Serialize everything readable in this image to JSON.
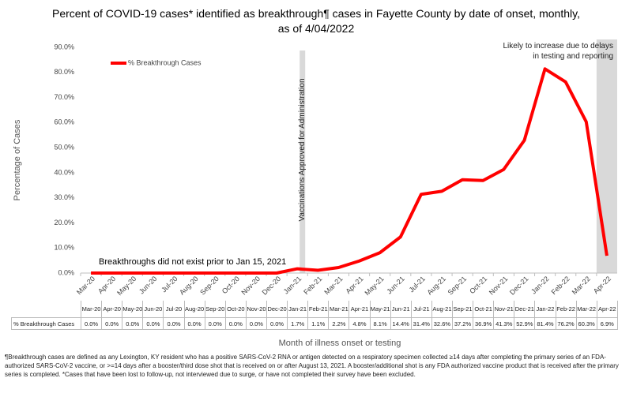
{
  "chart_data": {
    "type": "line",
    "title": "Percent of COVID-19 cases* identified as breakthrough¶ cases in Fayette County by date of onset, monthly, as of 4/04/2022",
    "x_label": "Month of illness onset or testing",
    "y_label": "Percentage of Cases",
    "categories": [
      "Mar-20",
      "Apr-20",
      "May-20",
      "Jun-20",
      "Jul-20",
      "Aug-20",
      "Sep-20",
      "Oct-20",
      "Nov-20",
      "Dec-20",
      "Jan-21",
      "Feb-21",
      "Mar-21",
      "Apr-21",
      "May-21",
      "Jun-21",
      "Jul-21",
      "Aug-21",
      "Sep-21",
      "Oct-21",
      "Nov-21",
      "Dec-21",
      "Jan-22",
      "Feb-22",
      "Mar-22",
      "Apr-22"
    ],
    "series": [
      {
        "name": "% Breakthrough Cases",
        "color": "#ff0000",
        "values": [
          0,
          0,
          0,
          0,
          0,
          0,
          0,
          0,
          0,
          0,
          1.7,
          1.1,
          2.2,
          4.8,
          8.1,
          14.4,
          31.4,
          32.6,
          37.2,
          36.9,
          41.3,
          52.9,
          81.4,
          76.2,
          60.3,
          6.9
        ],
        "value_labels": [
          "0.0%",
          "0.0%",
          "0.0%",
          "0.0%",
          "0.0%",
          "0.0%",
          "0.0%",
          "0.0%",
          "0.0%",
          "0.0%",
          "1.7%",
          "1.1%",
          "2.2%",
          "4.8%",
          "8.1%",
          "14.4%",
          "31.4%",
          "32.6%",
          "37.2%",
          "36.9%",
          "41.3%",
          "52.9%",
          "81.4%",
          "76.2%",
          "60.3%",
          "6.9%"
        ]
      }
    ],
    "ylim": [
      0,
      90
    ],
    "yticks": [
      {
        "value": 0,
        "label": "0.0%"
      },
      {
        "value": 10,
        "label": "10.0%"
      },
      {
        "value": 20,
        "label": "20.0%"
      },
      {
        "value": 30,
        "label": "30.0%"
      },
      {
        "value": 40,
        "label": "40.0%"
      },
      {
        "value": 50,
        "label": "50.0%"
      },
      {
        "value": 60,
        "label": "60.0%"
      },
      {
        "value": 70,
        "label": "70.0%"
      },
      {
        "value": 80,
        "label": "80.0%"
      },
      {
        "value": 90,
        "label": "90.0%"
      }
    ],
    "legend": "upper left",
    "annotations": [
      "Vaccinations Approved for Administration",
      "Likely to increase due to delays in testing and reporting",
      "Breakthroughs did not exist prior to Jan 15, 2021"
    ],
    "footnote": "¶Breakthrough cases are defined as any Lexington, KY resident who has a positive SARS-CoV-2 RNA or antigen detected on a respiratory specimen collected ≥14 days after completing the primary series of an FDA-authorized SARS-CoV-2 vaccine, or >=14 days after a booster/third dose shot that is received on or after August 13, 2021.  A booster/additional shot is any FDA authorized vaccine product that is received after the primary series is completed. *Cases that have been lost to follow-up, not interviewed due to surge, or have not completed their survey have been excluded."
  }
}
